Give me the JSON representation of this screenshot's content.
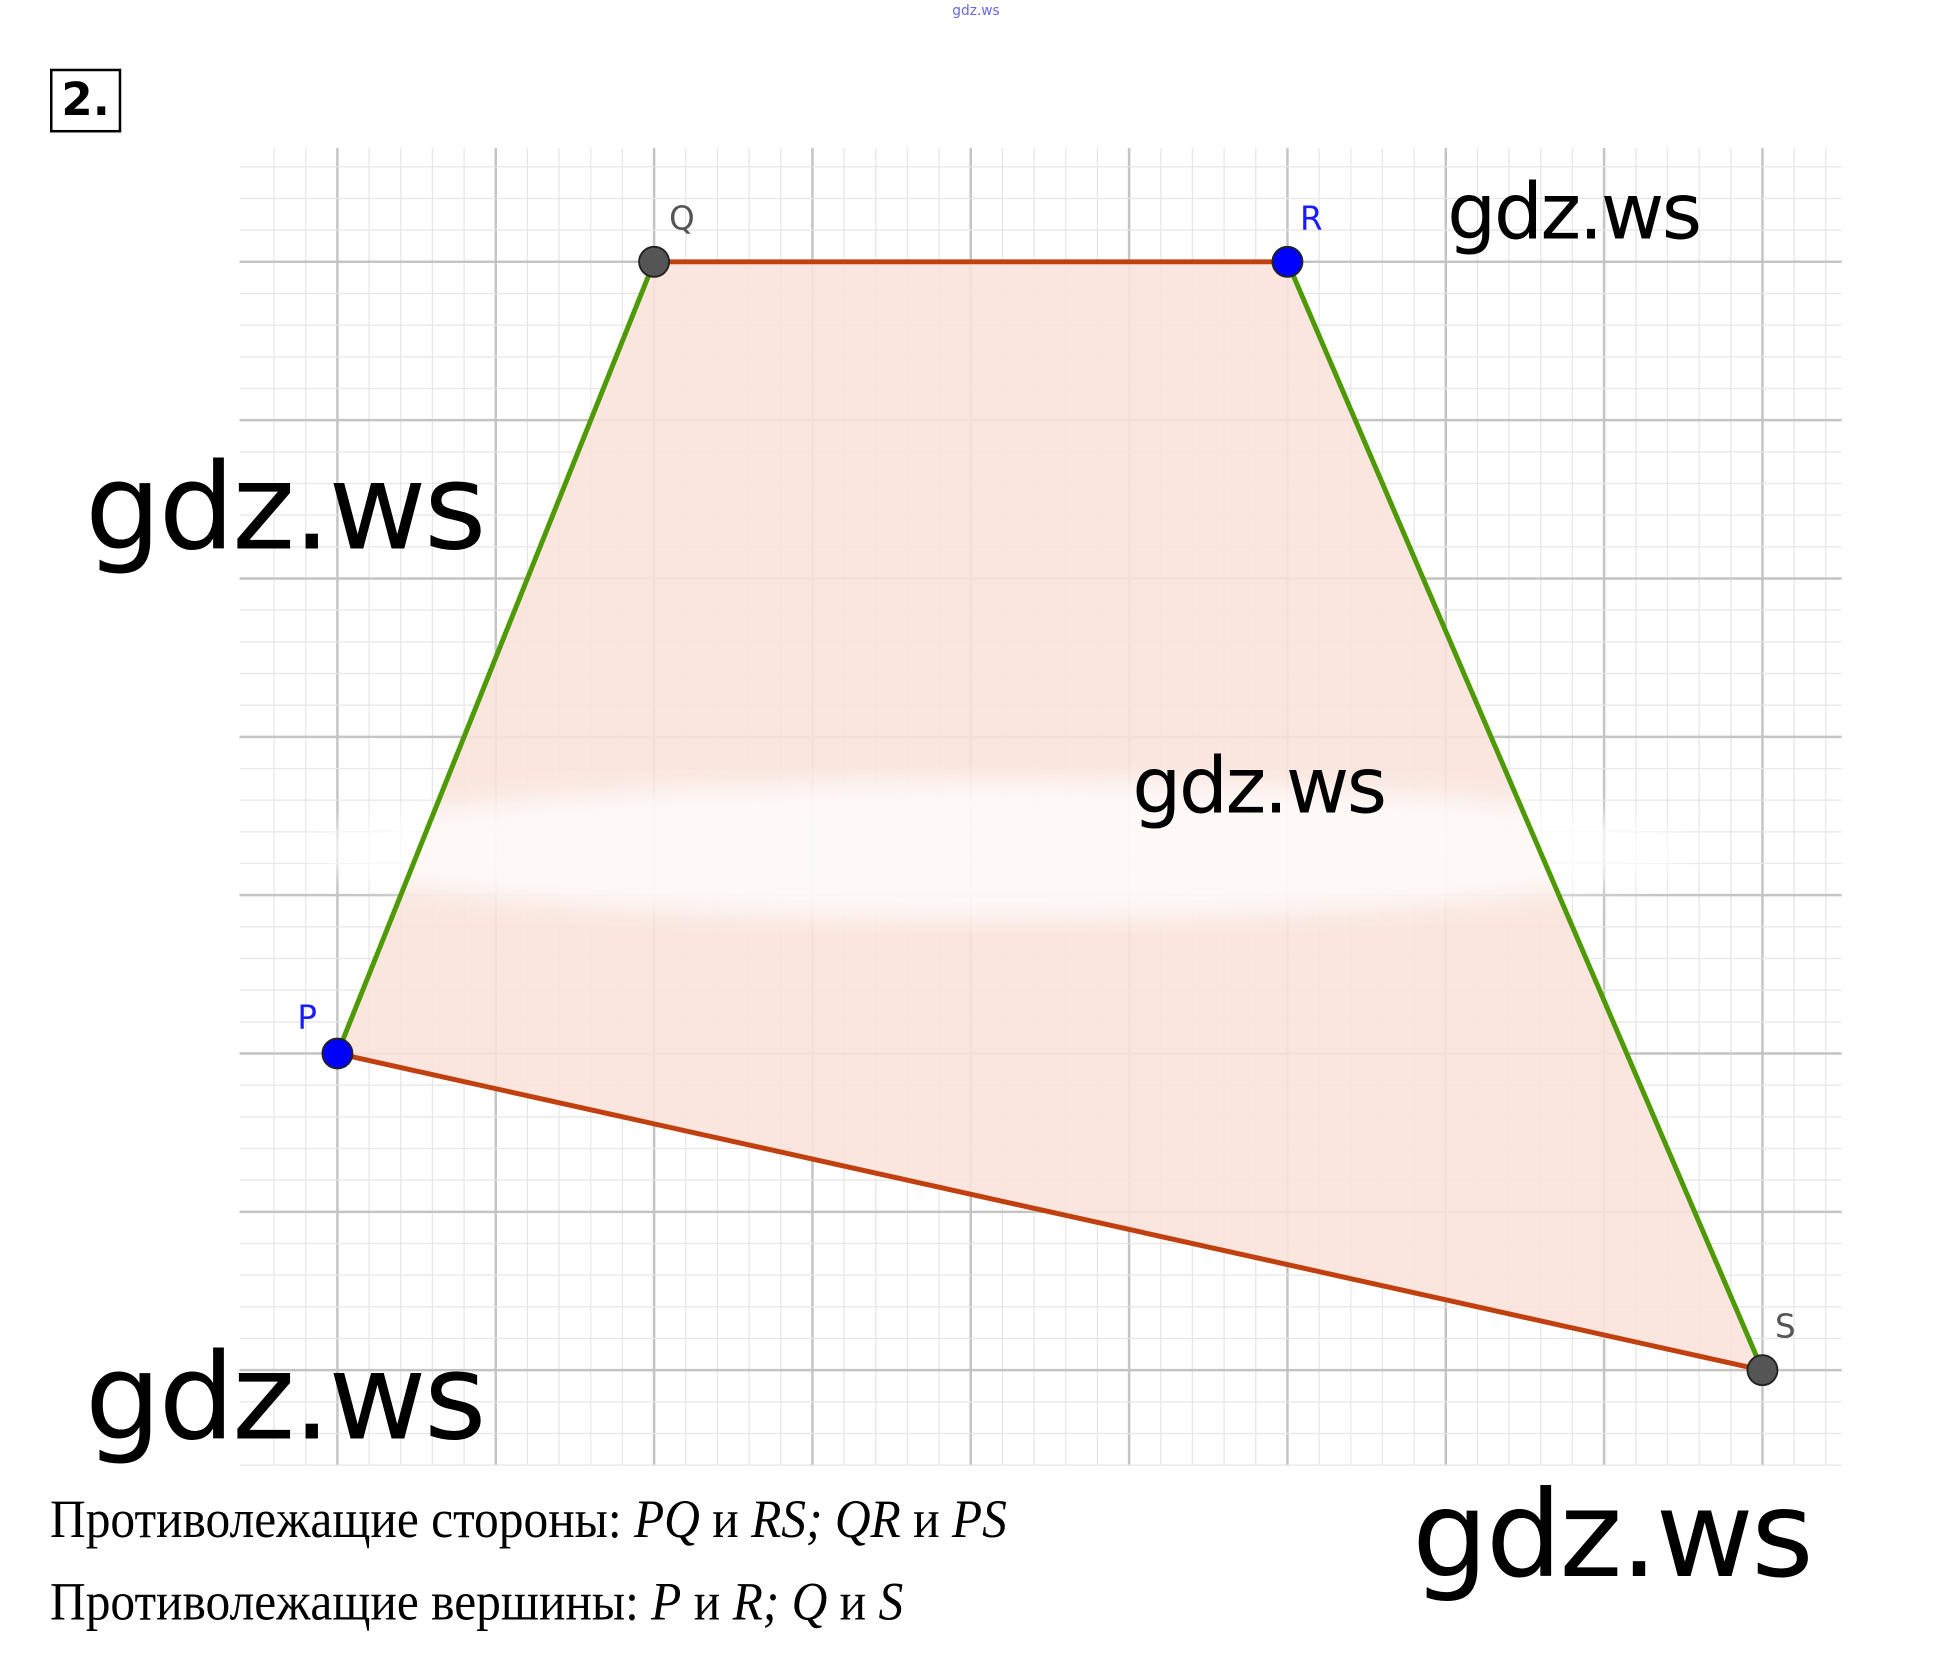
{
  "task_number": "2.",
  "header_watermark": "gdz.ws",
  "watermarks": [
    "gdz.ws",
    "gdz.ws",
    "gdz.ws",
    "gdz.ws",
    "gdz.ws"
  ],
  "diagram": {
    "grid": {
      "x_cells": [
        -0.5,
        9.5
      ],
      "y_cells": [
        -2.6,
        5.6
      ],
      "minor_per_cell": 5
    },
    "points": [
      {
        "label": "P",
        "x": 0,
        "y": 0,
        "color": "#0000ff"
      },
      {
        "label": "Q",
        "x": 2,
        "y": 5,
        "color": "#555555"
      },
      {
        "label": "R",
        "x": 6,
        "y": 5,
        "color": "#0000ff"
      },
      {
        "label": "S",
        "x": 9,
        "y": -2,
        "color": "#555555"
      }
    ],
    "sides": [
      {
        "from": "Q",
        "to": "R",
        "color": "#c0400f"
      },
      {
        "from": "R",
        "to": "S",
        "color": "#4e9a06"
      },
      {
        "from": "S",
        "to": "P",
        "color": "#c0400f"
      },
      {
        "from": "P",
        "to": "Q",
        "color": "#4e9a06"
      }
    ],
    "fill_color": "#f9e3dc"
  },
  "answer": {
    "sides_label": "Противолежащие стороны:",
    "sides_pair1a": "PQ",
    "and1": "и",
    "sides_pair1b": "RS;",
    "sides_pair2a": "QR",
    "and2": "и",
    "sides_pair2b": "PS",
    "vertices_label": "Противолежащие вершины:",
    "v1a": "P",
    "and3": "и",
    "v1b": "R;",
    "v2a": "Q",
    "and4": "и",
    "v2b": "S"
  }
}
